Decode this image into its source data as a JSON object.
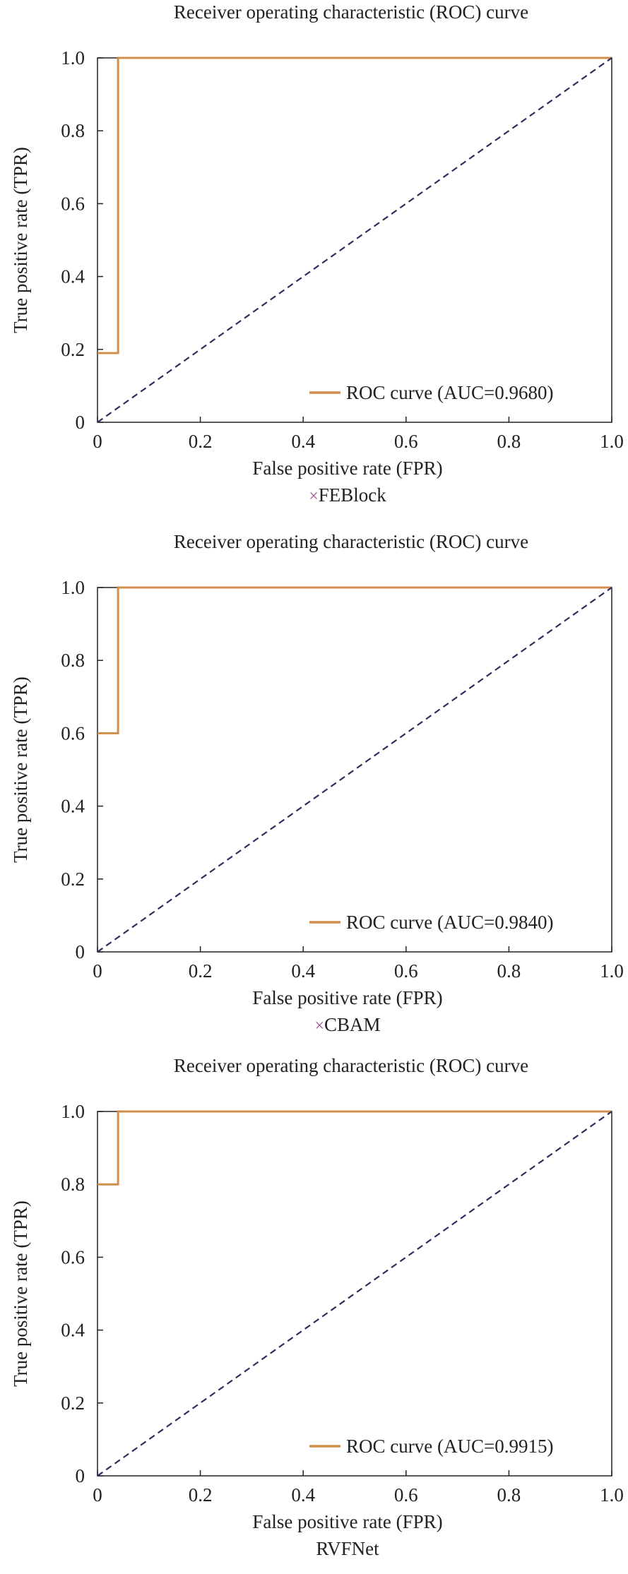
{
  "colors": {
    "roc": "#d08e4c",
    "diagonal": "#2e2e5e",
    "axis": "#222222",
    "caption_mark": "#a0509a"
  },
  "chart_data": [
    {
      "type": "line",
      "title": "Receiver operating characteristic (ROC) curve",
      "xlabel": "False positive rate (FPR)",
      "ylabel": "True positive rate (TPR)",
      "xlim": [
        0,
        1
      ],
      "ylim": [
        0,
        1
      ],
      "x_ticks": [
        "0",
        "0.2",
        "0.4",
        "0.6",
        "0.8",
        "1.0"
      ],
      "y_ticks": [
        "0",
        "0.2",
        "0.4",
        "0.6",
        "0.8",
        "1.0"
      ],
      "grid": false,
      "legend_position": "bottom-right",
      "caption_mark": "×",
      "caption": "FEBlock",
      "series": [
        {
          "name": "ROC curve (AUC=0.9680)",
          "style": "solid",
          "x": [
            0,
            0.04,
            0.04,
            1.0
          ],
          "y": [
            0.19,
            0.19,
            1.0,
            1.0
          ]
        },
        {
          "style": "dashed",
          "x": [
            0,
            1
          ],
          "y": [
            0,
            1
          ]
        }
      ]
    },
    {
      "type": "line",
      "title": "Receiver operating characteristic (ROC) curve",
      "xlabel": "False positive rate (FPR)",
      "ylabel": "True positive rate (TPR)",
      "xlim": [
        0,
        1
      ],
      "ylim": [
        0,
        1
      ],
      "x_ticks": [
        "0",
        "0.2",
        "0.4",
        "0.6",
        "0.8",
        "1.0"
      ],
      "y_ticks": [
        "0",
        "0.2",
        "0.4",
        "0.6",
        "0.8",
        "1.0"
      ],
      "grid": false,
      "legend_position": "bottom-right",
      "caption_mark": "×",
      "caption": "CBAM",
      "series": [
        {
          "name": "ROC curve (AUC=0.9840)",
          "style": "solid",
          "x": [
            0,
            0.04,
            0.04,
            1.0
          ],
          "y": [
            0.6,
            0.6,
            1.0,
            1.0
          ]
        },
        {
          "style": "dashed",
          "x": [
            0,
            1
          ],
          "y": [
            0,
            1
          ]
        }
      ]
    },
    {
      "type": "line",
      "title": "Receiver operating characteristic (ROC) curve",
      "xlabel": "False positive rate (FPR)",
      "ylabel": "True positive rate (TPR)",
      "xlim": [
        0,
        1
      ],
      "ylim": [
        0,
        1
      ],
      "x_ticks": [
        "0",
        "0.2",
        "0.4",
        "0.6",
        "0.8",
        "1.0"
      ],
      "y_ticks": [
        "0",
        "0.2",
        "0.4",
        "0.6",
        "0.8",
        "1.0"
      ],
      "grid": false,
      "legend_position": "bottom-right",
      "caption_mark": "",
      "caption": "RVFNet",
      "series": [
        {
          "name": "ROC curve (AUC=0.9915)",
          "style": "solid",
          "x": [
            0,
            0.04,
            0.04,
            1.0
          ],
          "y": [
            0.8,
            0.8,
            1.0,
            1.0
          ]
        },
        {
          "style": "dashed",
          "x": [
            0,
            1
          ],
          "y": [
            0,
            1
          ]
        }
      ]
    }
  ]
}
